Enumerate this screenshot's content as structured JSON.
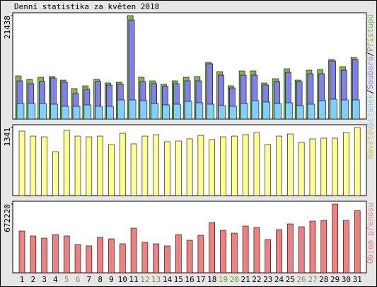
{
  "title": "Denní statistika za květen 2018",
  "chart_data": [
    {
      "type": "bar",
      "ylim": [
        0,
        21438
      ],
      "yticks": [
        21438
      ],
      "legend_separator": "/",
      "series": [
        {
          "name": "Přístupů",
          "color": "#80b840",
          "values": [
            8955,
            8221,
            8661,
            8808,
            8074,
            6312,
            6900,
            8221,
            7487,
            7634,
            21438,
            8661,
            7927,
            7193,
            7927,
            8661,
            8808,
            11744,
            9836,
            6900,
            9982,
            9982,
            7487,
            8368,
            10423,
            8074,
            10129,
            10276,
            12331,
            10863,
            12772
          ]
        },
        {
          "name": "Souborů",
          "color": "#8080f0",
          "values": [
            7927,
            7340,
            7780,
            8514,
            7634,
            5285,
            6166,
            7780,
            7046,
            7193,
            20552,
            7780,
            7340,
            6753,
            7340,
            7927,
            7927,
            11450,
            9102,
            6459,
            9102,
            9102,
            7046,
            7780,
            9689,
            7780,
            9395,
            9395,
            12038,
            10129,
            12331
          ]
        },
        {
          "name": "Stránek",
          "color": "#80d0ff",
          "values": [
            3230,
            3230,
            3230,
            3083,
            2642,
            2642,
            2936,
            2642,
            2642,
            3964,
            3964,
            3817,
            3230,
            2936,
            3083,
            3670,
            3376,
            3083,
            2789,
            2642,
            3230,
            3817,
            3523,
            3230,
            3376,
            2789,
            3083,
            3817,
            4110,
            3964,
            3964
          ]
        }
      ]
    },
    {
      "type": "bar",
      "ylim": [
        0,
        1341
      ],
      "yticks": [
        1341
      ],
      "label": "Návštěv",
      "label_color": "#c8c850",
      "color": "#ffff90",
      "values": [
        1271,
        1173,
        1159,
        866,
        1285,
        1173,
        1159,
        1173,
        1006,
        1229,
        1020,
        1173,
        1201,
        1062,
        1076,
        1118,
        1187,
        1104,
        1159,
        1173,
        1201,
        1243,
        1006,
        1173,
        1215,
        1048,
        1118,
        1132,
        1132,
        1243,
        1341
      ]
    },
    {
      "type": "bar",
      "ylim": [
        0,
        672220
      ],
      "yticks": [
        672220
      ],
      "label": "Objem přenosu",
      "label_color": "#f08080",
      "color": "#f08080",
      "categories": [
        "1",
        "2",
        "3",
        "4",
        "5",
        "6",
        "7",
        "8",
        "9",
        "10",
        "11",
        "12",
        "13",
        "14",
        "15",
        "16",
        "17",
        "18",
        "19",
        "20",
        "21",
        "22",
        "23",
        "24",
        "25",
        "26",
        "27",
        "28",
        "29",
        "30",
        "31"
      ],
      "category_colors": [
        "#000000",
        "#000000",
        "#000000",
        "#000000",
        "#70a030",
        "#70a030",
        "#000000",
        "#000000",
        "#000000",
        "#000000",
        "#000000",
        "#70a030",
        "#70a030",
        "#000000",
        "#000000",
        "#000000",
        "#000000",
        "#000000",
        "#70a030",
        "#70a030",
        "#000000",
        "#000000",
        "#000000",
        "#000000",
        "#000000",
        "#70a030",
        "#70a030",
        "#000000",
        "#000000",
        "#000000",
        "#000000"
      ],
      "values": [
        408870,
        360360,
        339570,
        374220,
        360360,
        277200,
        263340,
        346500,
        332640,
        284130,
        436590,
        297990,
        284130,
        263340,
        374220,
        318780,
        367290,
        492030,
        415800,
        388080,
        457380,
        443520,
        325710,
        422730,
        478170,
        450450,
        505890,
        512820,
        672220,
        512820,
        609840
      ]
    }
  ]
}
